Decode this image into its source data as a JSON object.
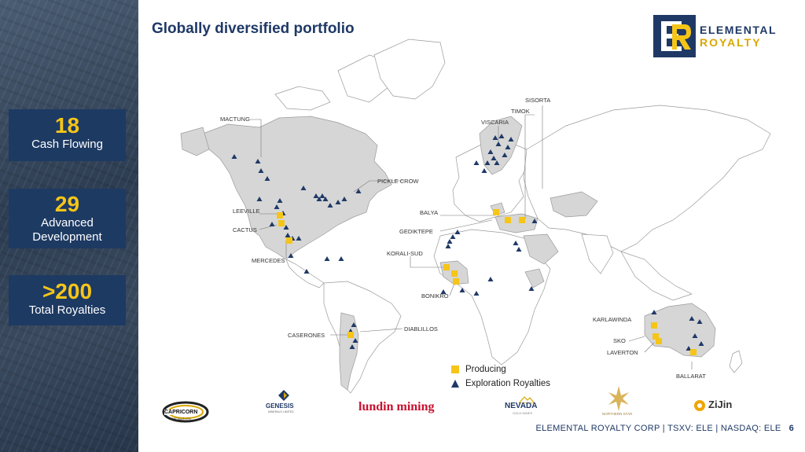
{
  "slide": {
    "title": "Globally diversified portfolio",
    "page_number": "6"
  },
  "logo": {
    "line1": "ELEMENTAL",
    "line2": "ROYALTY"
  },
  "stats": [
    {
      "number": "18",
      "label_lines": [
        "Cash Flowing"
      ]
    },
    {
      "number": "29",
      "label_lines": [
        "Advanced",
        "Development"
      ]
    },
    {
      "number": ">200",
      "label_lines": [
        "Total Royalties"
      ]
    }
  ],
  "map": {
    "site_labels": [
      "MACTUNG",
      "PICKLE CROW",
      "LEEVILLE",
      "CACTUS",
      "MERCEDES",
      "CASERONES",
      "DIABLILLOS",
      "SISORTA",
      "TIMOK",
      "VISCARIA",
      "BALYA",
      "GEDIKTEPE",
      "KORALI-SUD",
      "BONIKRO",
      "KARLAWINDA",
      "SKO",
      "LAVERTON",
      "BALLARAT"
    ],
    "legend": {
      "producing": "Producing",
      "exploration": "Exploration Royalties"
    },
    "colors": {
      "producing": "#f5c518",
      "exploration": "#1f3966",
      "land_highlight": "#d6d6d6",
      "land": "#ffffff",
      "border": "#9a9a9a"
    }
  },
  "partners": {
    "capricorn": {
      "name": "CAPRICORN",
      "sub": "METALS LTD"
    },
    "genesis": {
      "name": "GENESIS",
      "sub": "MINERALS LIMITED"
    },
    "lundin": {
      "name": "lundin mining"
    },
    "nevada": {
      "name": "NEVADA",
      "sub": "GOLD MINES"
    },
    "northern_star": {
      "name": "NORTHERN STAR"
    },
    "zijin": {
      "name": "ZiJin"
    }
  },
  "footer": {
    "text": "ELEMENTAL ROYALTY CORP | TSXV: ELE | NASDAQ: ELE"
  }
}
